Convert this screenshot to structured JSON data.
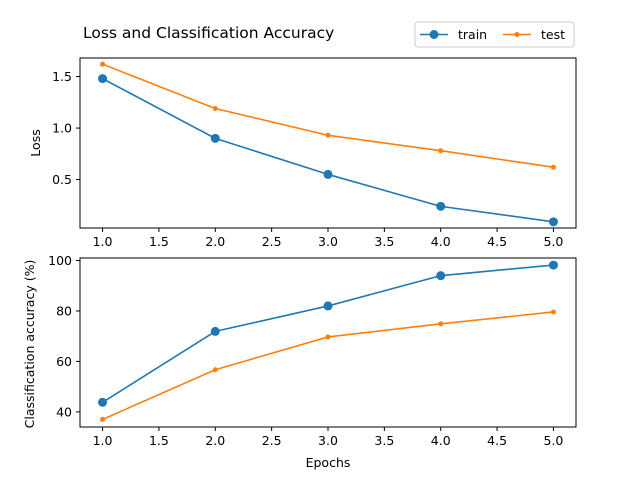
{
  "chart_data": [
    {
      "type": "line",
      "title": "Loss and Classification Accuracy",
      "xlabel": "",
      "ylabel": "Loss",
      "x": [
        1,
        2,
        3,
        4,
        5
      ],
      "xlim": [
        0.8,
        5.2
      ],
      "ylim": [
        0.03,
        1.68
      ],
      "xticks": [
        1.0,
        1.5,
        2.0,
        2.5,
        3.0,
        3.5,
        4.0,
        4.5,
        5.0
      ],
      "yticks": [
        0.5,
        1.0,
        1.5
      ],
      "grid": false,
      "legend": "above-right",
      "series": [
        {
          "name": "train",
          "values": [
            1.48,
            0.9,
            0.55,
            0.24,
            0.09
          ],
          "color": "#1f77b4",
          "marker": "large-circle"
        },
        {
          "name": "test",
          "values": [
            1.62,
            1.19,
            0.93,
            0.78,
            0.62
          ],
          "color": "#ff7f0e",
          "marker": "small-circle"
        }
      ]
    },
    {
      "type": "line",
      "title": "",
      "xlabel": "Epochs",
      "ylabel": "Classification accuracy (%)",
      "x": [
        1,
        2,
        3,
        4,
        5
      ],
      "xlim": [
        0.8,
        5.2
      ],
      "ylim": [
        34,
        101
      ],
      "xticks": [
        1.0,
        1.5,
        2.0,
        2.5,
        3.0,
        3.5,
        4.0,
        4.5,
        5.0
      ],
      "yticks": [
        40,
        60,
        80,
        100
      ],
      "grid": false,
      "series": [
        {
          "name": "train",
          "values": [
            43.8,
            71.9,
            82.0,
            94.0,
            98.2
          ],
          "color": "#1f77b4",
          "marker": "large-circle"
        },
        {
          "name": "test",
          "values": [
            37.0,
            56.7,
            69.7,
            74.9,
            79.6
          ],
          "color": "#ff7f0e",
          "marker": "small-circle"
        }
      ]
    }
  ]
}
